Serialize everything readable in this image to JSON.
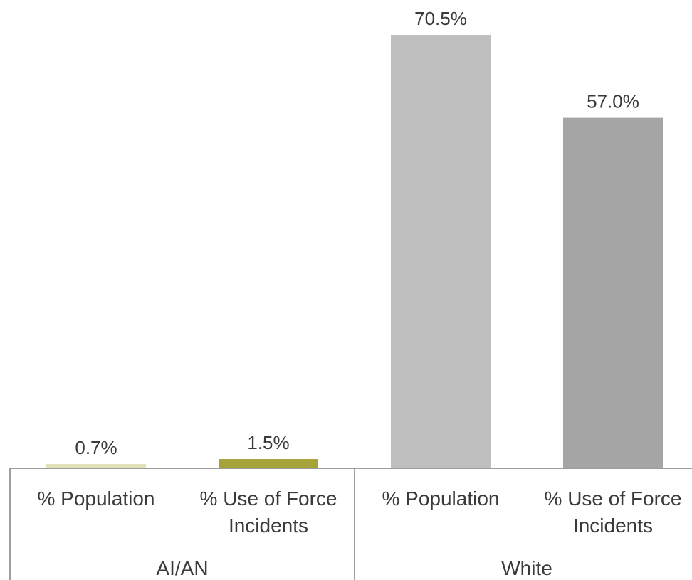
{
  "chart_data": {
    "type": "bar",
    "groups": [
      {
        "name": "AI/AN",
        "bars": [
          {
            "category": "% Population",
            "value": 0.7,
            "label": "0.7%",
            "color": "#e3e1b8"
          },
          {
            "category": "% Use of Force Incidents",
            "value": 1.5,
            "label": "1.5%",
            "color": "#a6a338"
          }
        ]
      },
      {
        "name": "White",
        "bars": [
          {
            "category": "% Population",
            "value": 70.5,
            "label": "70.5%",
            "color": "#bfbfbf"
          },
          {
            "category": "% Use of Force Incidents",
            "value": 57.0,
            "label": "57.0%",
            "color": "#a5a5a5"
          }
        ]
      }
    ],
    "category_lines": {
      "% Population": [
        "% Population"
      ],
      "% Use of Force Incidents": [
        "% Use of Force",
        "Incidents"
      ]
    },
    "ylim": [
      0,
      75
    ],
    "grid": false,
    "title": "",
    "xlabel": "",
    "ylabel": ""
  }
}
